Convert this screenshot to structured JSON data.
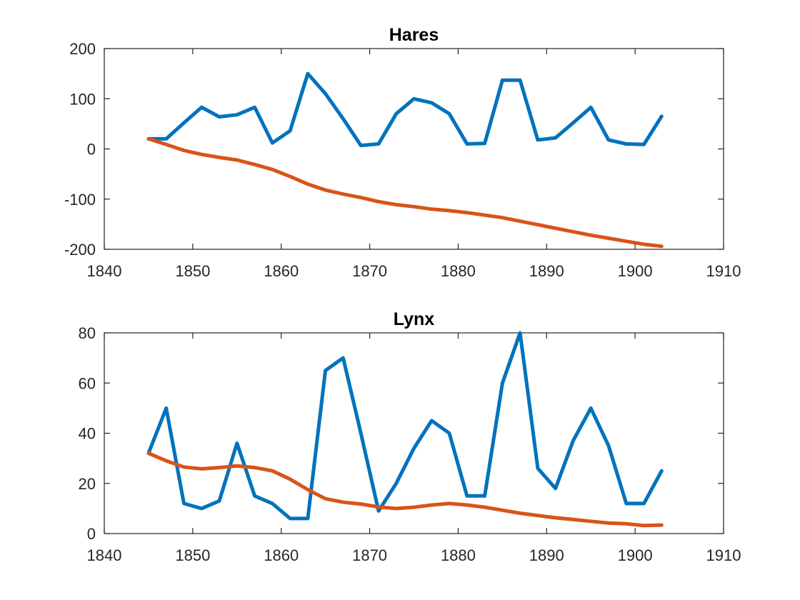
{
  "chart_data": [
    {
      "type": "line",
      "title": "Hares",
      "xlabel": "",
      "ylabel": "",
      "xlim": [
        1840,
        1910
      ],
      "ylim": [
        -200,
        200
      ],
      "xticks": [
        1840,
        1850,
        1860,
        1870,
        1880,
        1890,
        1900,
        1910
      ],
      "yticks": [
        -200,
        -100,
        0,
        100,
        200
      ],
      "grid": false,
      "series": [
        {
          "color": "#0072BD",
          "x": [
            1845,
            1847,
            1849,
            1851,
            1853,
            1855,
            1857,
            1859,
            1861,
            1863,
            1865,
            1867,
            1869,
            1871,
            1873,
            1875,
            1877,
            1879,
            1881,
            1883,
            1885,
            1887,
            1889,
            1891,
            1893,
            1895,
            1897,
            1899,
            1901,
            1903
          ],
          "values": [
            20,
            20,
            52,
            83,
            64,
            68,
            83,
            12,
            36,
            150,
            110,
            60,
            7,
            10,
            70,
            100,
            92,
            70,
            10,
            11,
            137,
            137,
            18,
            22,
            52,
            83,
            18,
            10,
            9,
            65
          ]
        },
        {
          "color": "#D95319",
          "x": [
            1845,
            1847,
            1849,
            1851,
            1853,
            1855,
            1857,
            1859,
            1861,
            1863,
            1865,
            1867,
            1869,
            1871,
            1873,
            1875,
            1877,
            1879,
            1881,
            1883,
            1885,
            1887,
            1889,
            1891,
            1893,
            1895,
            1897,
            1899,
            1901,
            1903
          ],
          "values": [
            20,
            9,
            -3,
            -11,
            -17,
            -22,
            -31,
            -41,
            -55,
            -70,
            -82,
            -90,
            -97,
            -105,
            -111,
            -115,
            -120,
            -123,
            -127,
            -132,
            -137,
            -144,
            -151,
            -158,
            -165,
            -172,
            -178,
            -184,
            -190,
            -194
          ]
        }
      ]
    },
    {
      "type": "line",
      "title": "Lynx",
      "xlabel": "",
      "ylabel": "",
      "xlim": [
        1840,
        1910
      ],
      "ylim": [
        0,
        80
      ],
      "xticks": [
        1840,
        1850,
        1860,
        1870,
        1880,
        1890,
        1900,
        1910
      ],
      "yticks": [
        0,
        20,
        40,
        60,
        80
      ],
      "grid": false,
      "series": [
        {
          "color": "#0072BD",
          "x": [
            1845,
            1847,
            1849,
            1851,
            1853,
            1855,
            1857,
            1859,
            1861,
            1863,
            1865,
            1867,
            1869,
            1871,
            1873,
            1875,
            1877,
            1879,
            1881,
            1883,
            1885,
            1887,
            1889,
            1891,
            1893,
            1895,
            1897,
            1899,
            1901,
            1903
          ],
          "values": [
            32,
            50,
            12,
            10,
            13,
            36,
            15,
            12,
            6,
            6,
            65,
            70,
            40,
            9,
            20,
            34,
            45,
            40,
            15,
            15,
            60,
            80,
            26,
            18,
            37,
            50,
            35,
            12,
            12,
            25
          ]
        },
        {
          "color": "#D95319",
          "x": [
            1845,
            1847,
            1849,
            1851,
            1853,
            1855,
            1857,
            1859,
            1861,
            1863,
            1865,
            1867,
            1869,
            1871,
            1873,
            1875,
            1877,
            1879,
            1881,
            1883,
            1885,
            1887,
            1889,
            1891,
            1893,
            1895,
            1897,
            1899,
            1901,
            1903
          ],
          "values": [
            32,
            29,
            26.5,
            25.8,
            26.3,
            27,
            26.3,
            25,
            21.7,
            17.5,
            13.9,
            12.5,
            11.8,
            10.6,
            10,
            10.5,
            11.4,
            12,
            11.4,
            10.5,
            9.3,
            8.1,
            7.2,
            6.3,
            5.6,
            4.9,
            4.2,
            3.9,
            3.2,
            3.4
          ]
        }
      ]
    }
  ]
}
